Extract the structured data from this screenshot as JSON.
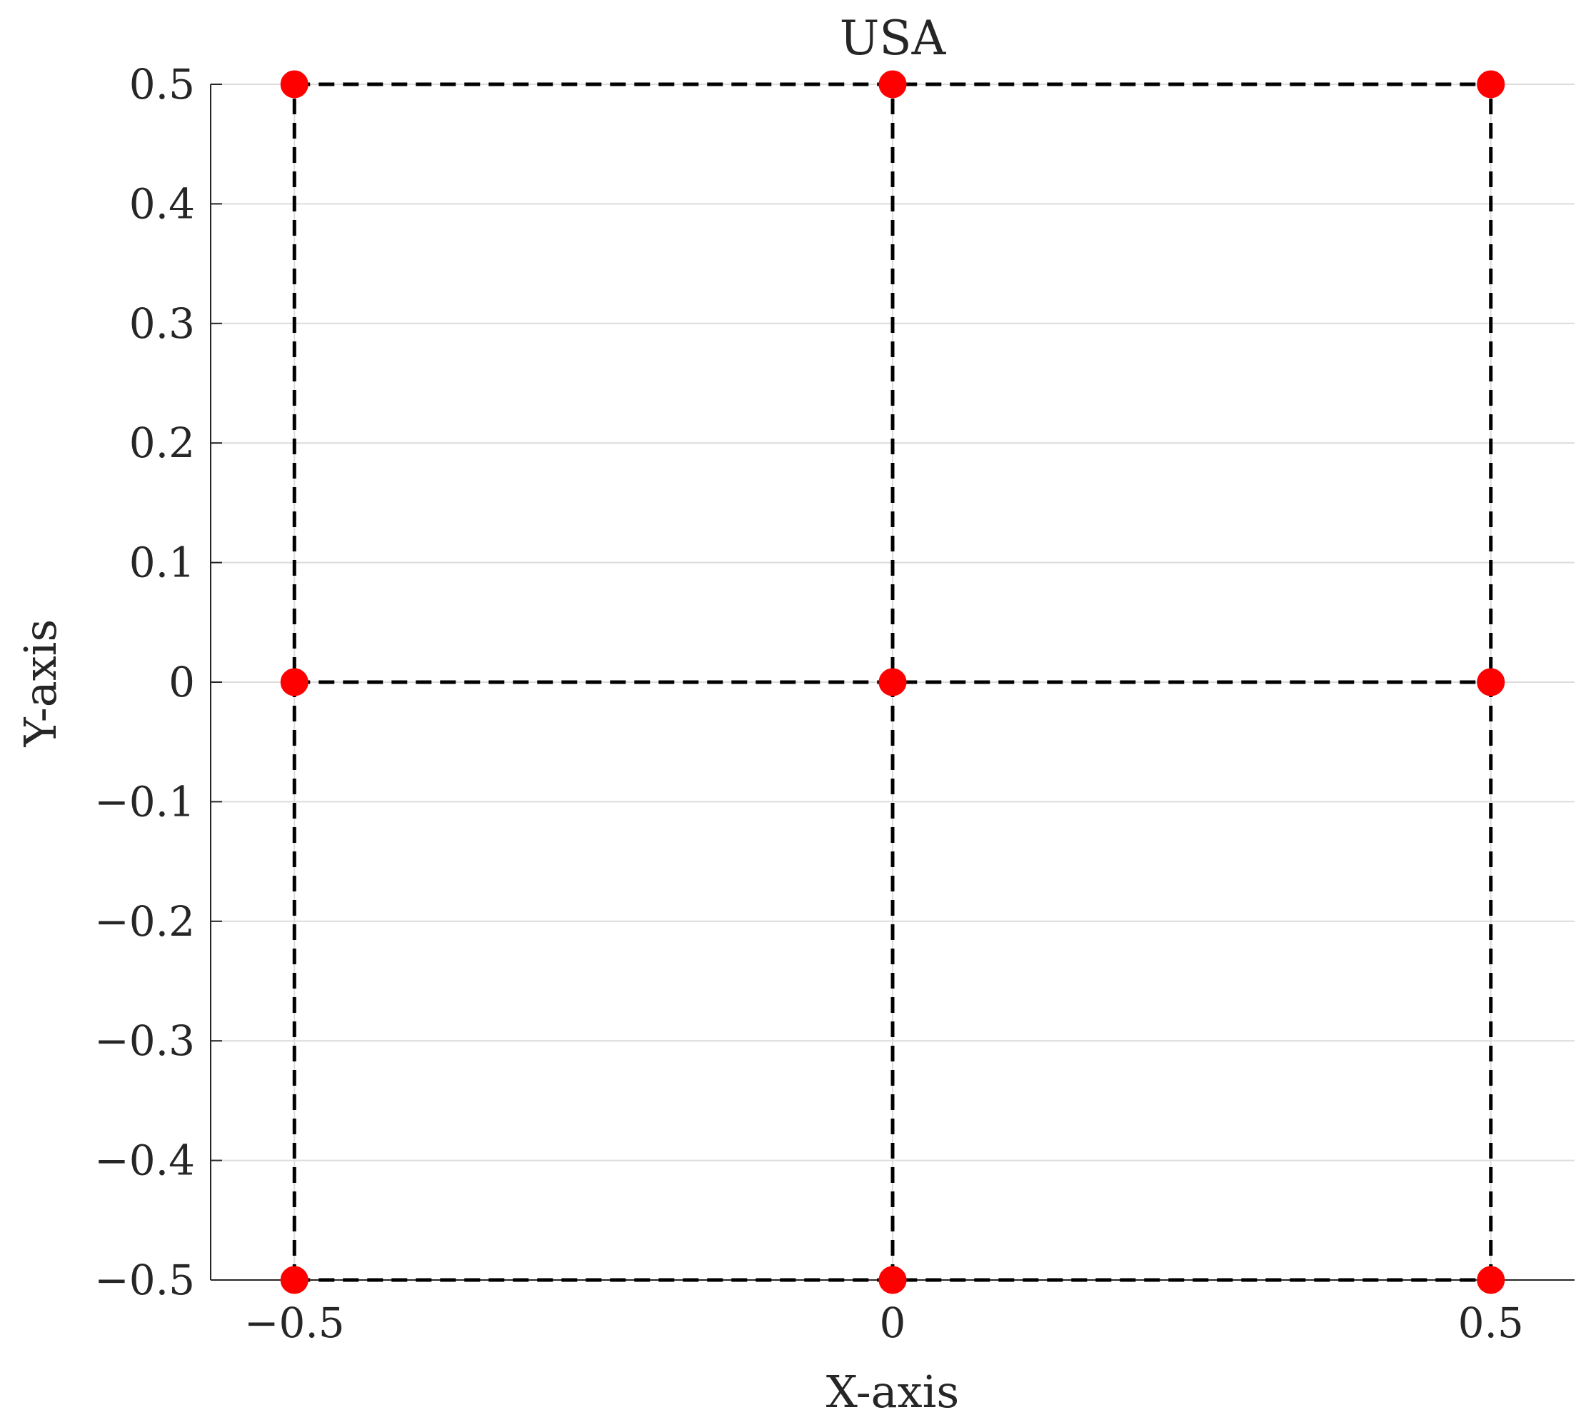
{
  "chart_data": {
    "type": "scatter",
    "title": "USA",
    "xlabel": "X-axis",
    "ylabel": "Y-axis",
    "xlim": [
      -0.57,
      0.57
    ],
    "ylim": [
      -0.5,
      0.5
    ],
    "grid": true,
    "x_ticks": [
      -0.5,
      0,
      0.5
    ],
    "x_tick_labels": [
      "−0.5",
      "0",
      "0.5"
    ],
    "y_ticks": [
      -0.5,
      -0.4,
      -0.3,
      -0.2,
      -0.1,
      0,
      0.1,
      0.2,
      0.3,
      0.4,
      0.5
    ],
    "y_tick_labels": [
      "−0.5",
      "−0.4",
      "−0.3",
      "−0.2",
      "−0.1",
      "0",
      "0.1",
      "0.2",
      "0.3",
      "0.4",
      "0.5"
    ],
    "points": [
      {
        "x": -0.5,
        "y": 0.5
      },
      {
        "x": 0,
        "y": 0.5
      },
      {
        "x": 0.5,
        "y": 0.5
      },
      {
        "x": -0.5,
        "y": 0
      },
      {
        "x": 0,
        "y": 0
      },
      {
        "x": 0.5,
        "y": 0
      },
      {
        "x": -0.5,
        "y": -0.5
      },
      {
        "x": 0,
        "y": -0.5
      },
      {
        "x": 0.5,
        "y": -0.5
      }
    ],
    "lines": [
      {
        "x": [
          -0.5,
          0.5
        ],
        "y": [
          0.5,
          0.5
        ]
      },
      {
        "x": [
          -0.5,
          0.5
        ],
        "y": [
          0,
          0
        ]
      },
      {
        "x": [
          -0.5,
          0.5
        ],
        "y": [
          -0.5,
          -0.5
        ]
      },
      {
        "x": [
          -0.5,
          -0.5
        ],
        "y": [
          -0.5,
          0.5
        ]
      },
      {
        "x": [
          0,
          0
        ],
        "y": [
          -0.5,
          0.5
        ]
      },
      {
        "x": [
          0.5,
          0.5
        ],
        "y": [
          -0.5,
          0.5
        ]
      }
    ],
    "colors": {
      "marker": "#ff0000",
      "line": "#000000",
      "grid": "#dcdcdc",
      "axis": "#262626"
    }
  }
}
